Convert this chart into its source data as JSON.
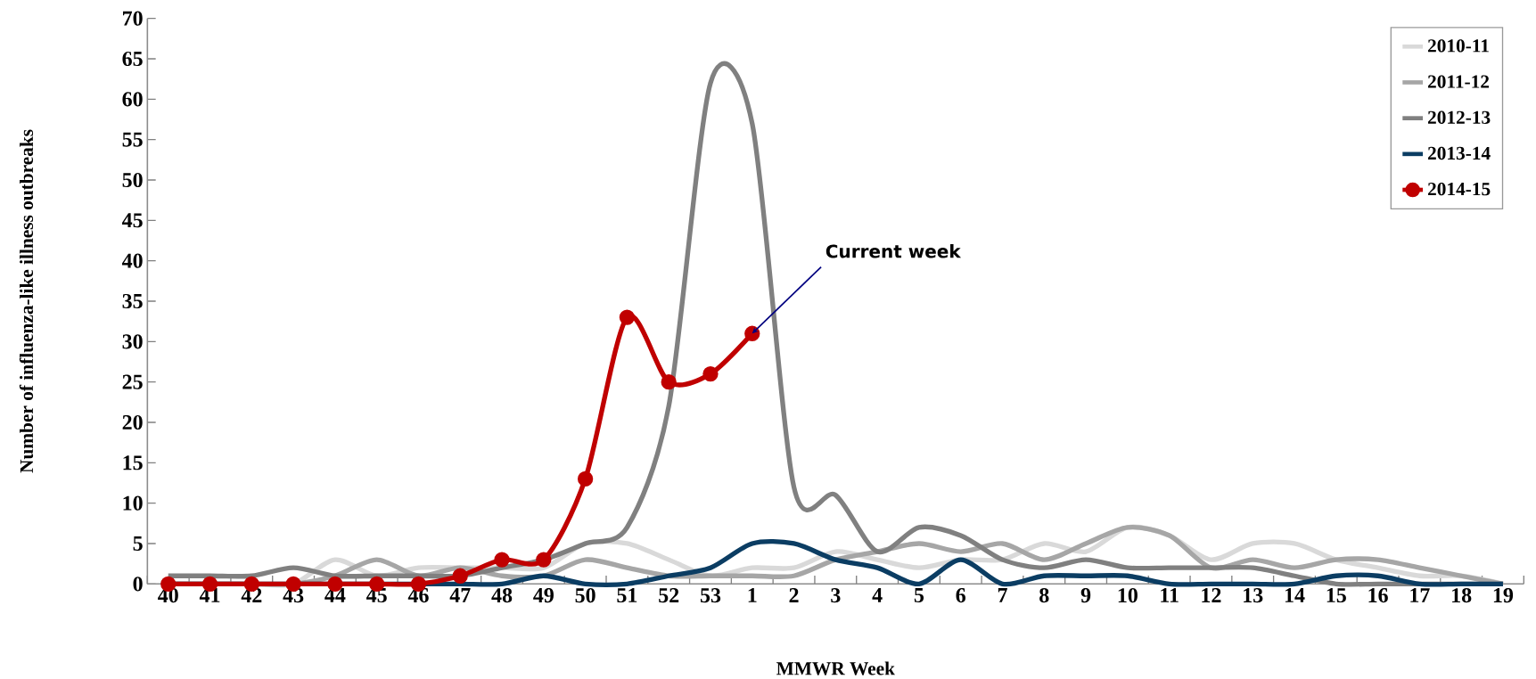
{
  "chart_data": {
    "type": "line",
    "xlabel": "MMWR Week",
    "ylabel": "Number of influenza-like illness outbreaks",
    "categories": [
      "40",
      "41",
      "42",
      "43",
      "44",
      "45",
      "46",
      "47",
      "48",
      "49",
      "50",
      "51",
      "52",
      "53",
      "1",
      "2",
      "3",
      "4",
      "5",
      "6",
      "7",
      "8",
      "9",
      "10",
      "11",
      "12",
      "13",
      "14",
      "15",
      "16",
      "17",
      "18",
      "19"
    ],
    "series": [
      {
        "name": "2010-11",
        "color": "#d9d9d9",
        "marker": "none",
        "values": [
          0,
          0,
          0,
          0,
          3,
          1,
          2,
          2,
          2,
          2,
          5,
          5,
          3,
          1,
          2,
          2,
          4,
          3,
          2,
          3,
          3,
          5,
          4,
          7,
          6,
          3,
          5,
          5,
          3,
          2,
          1,
          1,
          0
        ]
      },
      {
        "name": "2011-12",
        "color": "#a6a6a6",
        "marker": "none",
        "values": [
          0,
          0,
          0,
          0,
          1,
          3,
          1,
          2,
          1,
          1,
          3,
          2,
          1,
          1,
          1,
          1,
          3,
          4,
          5,
          4,
          5,
          3,
          5,
          7,
          6,
          2,
          3,
          2,
          3,
          3,
          2,
          1,
          0
        ]
      },
      {
        "name": "2012-13",
        "color": "#808080",
        "marker": "none",
        "values": [
          1,
          1,
          1,
          2,
          1,
          1,
          1,
          1,
          2,
          3,
          5,
          7,
          22,
          62,
          57,
          12,
          11,
          4,
          7,
          6,
          3,
          2,
          3,
          2,
          2,
          2,
          2,
          1,
          0,
          0,
          0,
          0,
          0
        ]
      },
      {
        "name": "2013-14",
        "color": "#0b3d63",
        "marker": "none",
        "values": [
          0,
          0,
          0,
          0,
          0,
          0,
          0,
          0,
          0,
          1,
          0,
          0,
          1,
          2,
          5,
          5,
          3,
          2,
          0,
          3,
          0,
          1,
          1,
          1,
          0,
          0,
          0,
          0,
          1,
          1,
          0,
          0,
          0
        ]
      },
      {
        "name": "2014-15",
        "color": "#c00000",
        "marker": "circle",
        "values": [
          0,
          0,
          0,
          0,
          0,
          0,
          0,
          1,
          3,
          3,
          13,
          33,
          25,
          26,
          31,
          null,
          null,
          null,
          null,
          null,
          null,
          null,
          null,
          null,
          null,
          null,
          null,
          null,
          null,
          null,
          null,
          null,
          null
        ]
      }
    ],
    "ylim": [
      0,
      70
    ],
    "yticks": [
      0,
      5,
      10,
      15,
      20,
      25,
      30,
      35,
      40,
      45,
      50,
      55,
      60,
      65,
      70
    ],
    "annotations": [
      {
        "text": "Current week",
        "x": "1",
        "y": 31
      }
    ],
    "grid": false,
    "legend": "top right",
    "line_style": "solid"
  }
}
